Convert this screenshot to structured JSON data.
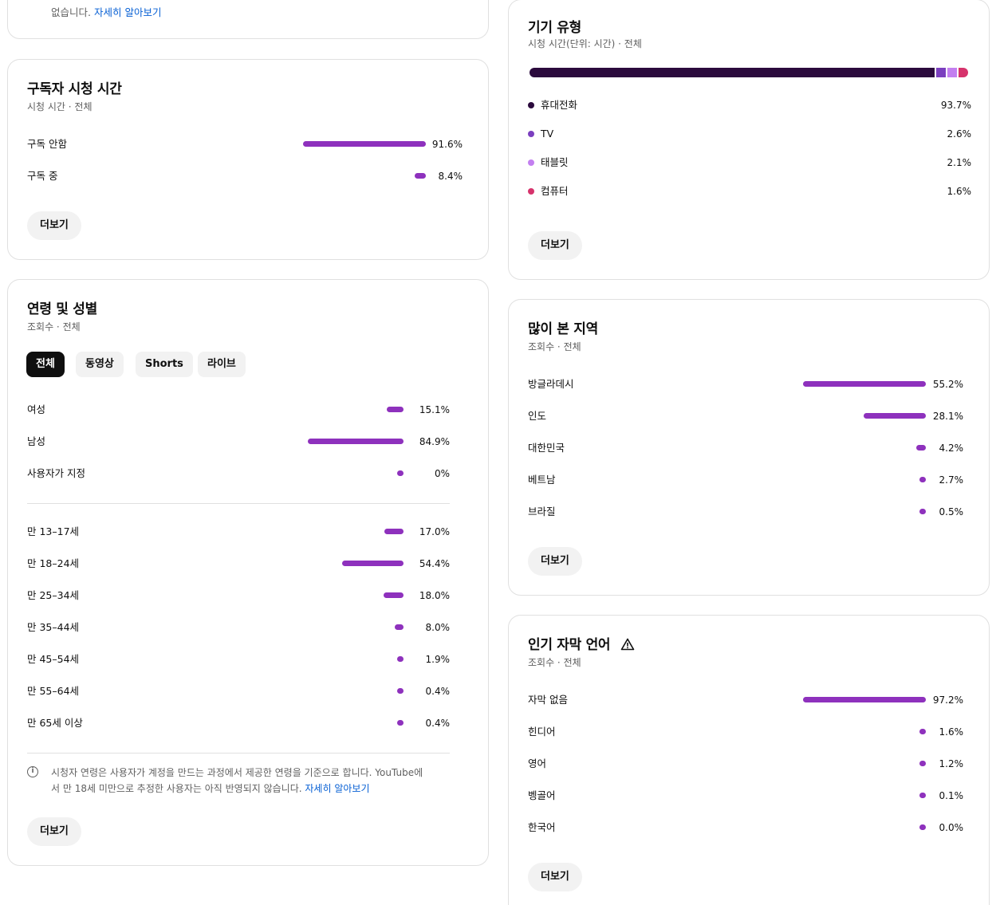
{
  "top_card": {
    "text": "없습니다.",
    "link": "자세히 알아보기"
  },
  "subscriber": {
    "title": "구독자 시청 시간",
    "subtitle": "시청 시간 · 전체",
    "rows": [
      {
        "label": "구독 안함",
        "value": "91.6%",
        "pct": 91.6
      },
      {
        "label": "구독 중",
        "value": "8.4%",
        "pct": 8.4
      }
    ],
    "more": "더보기"
  },
  "age_gender": {
    "title": "연령 및 성별",
    "subtitle": "조회수 · 전체",
    "chips": [
      "전체",
      "동영상",
      "Shorts",
      "라이브"
    ],
    "gender_rows": [
      {
        "label": "여성",
        "value": "15.1%",
        "pct": 15.1
      },
      {
        "label": "남성",
        "value": "84.9%",
        "pct": 84.9
      },
      {
        "label": "사용자가 지정",
        "value": "0%",
        "pct": 0
      }
    ],
    "age_rows": [
      {
        "label": "만 13–17세",
        "value": "17.0%",
        "pct": 17.0
      },
      {
        "label": "만 18–24세",
        "value": "54.4%",
        "pct": 54.4
      },
      {
        "label": "만 25–34세",
        "value": "18.0%",
        "pct": 18.0
      },
      {
        "label": "만 35–44세",
        "value": "8.0%",
        "pct": 8.0
      },
      {
        "label": "만 45–54세",
        "value": "1.9%",
        "pct": 1.9
      },
      {
        "label": "만 55–64세",
        "value": "0.4%",
        "pct": 0.4
      },
      {
        "label": "만 65세 이상",
        "value": "0.4%",
        "pct": 0.4
      }
    ],
    "info_line1": "시청자 연령은 사용자가 계정을 만드는 과정에서 제공한 연령을 기준으로 합니다. YouTube에",
    "info_line2": "서 만 18세 미만으로 추정한 사용자는 아직 반영되지 않습니다.",
    "info_link": "자세히 알아보기",
    "more": "더보기"
  },
  "device": {
    "title": "기기 유형",
    "subtitle": "시청 시간(단위: 시간) · 전체",
    "rows": [
      {
        "label": "휴대전화",
        "value": "93.7%",
        "pct": 93.7,
        "color": "#2b0a3d"
      },
      {
        "label": "TV",
        "value": "2.6%",
        "pct": 2.6,
        "color": "#7b3fbf"
      },
      {
        "label": "태블릿",
        "value": "2.1%",
        "pct": 2.1,
        "color": "#c37ff0"
      },
      {
        "label": "컴퓨터",
        "value": "1.6%",
        "pct": 1.6,
        "color": "#d6336c"
      }
    ],
    "more": "더보기"
  },
  "region": {
    "title": "많이 본 지역",
    "subtitle": "조회수 · 전체",
    "rows": [
      {
        "label": "방글라데시",
        "value": "55.2%",
        "pct": 55.2
      },
      {
        "label": "인도",
        "value": "28.1%",
        "pct": 28.1
      },
      {
        "label": "대한민국",
        "value": "4.2%",
        "pct": 4.2
      },
      {
        "label": "베트남",
        "value": "2.7%",
        "pct": 2.7
      },
      {
        "label": "브라질",
        "value": "0.5%",
        "pct": 0.5
      }
    ],
    "more": "더보기"
  },
  "subtitles": {
    "title": "인기 자막 언어",
    "subtitle": "조회수 · 전체",
    "rows": [
      {
        "label": "자막 없음",
        "value": "97.2%",
        "pct": 97.2
      },
      {
        "label": "힌디어",
        "value": "1.6%",
        "pct": 1.6
      },
      {
        "label": "영어",
        "value": "1.2%",
        "pct": 1.2
      },
      {
        "label": "벵골어",
        "value": "0.1%",
        "pct": 0.1
      },
      {
        "label": "한국어",
        "value": "0.0%",
        "pct": 0.0
      }
    ],
    "more": "더보기"
  },
  "colors": {
    "bar": "#8e31bd",
    "link": "#065fd4"
  }
}
